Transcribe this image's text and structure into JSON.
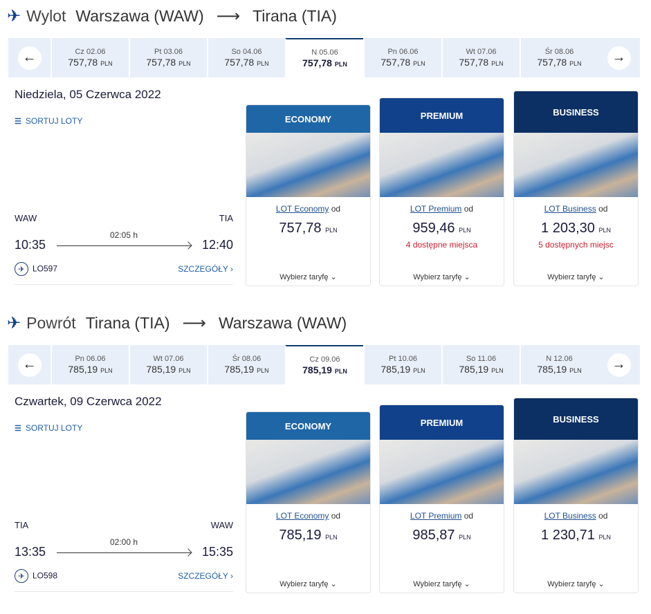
{
  "outbound": {
    "label": "Wylot",
    "from": "Warszawa (WAW)",
    "to": "Tirana (TIA)",
    "dates": [
      {
        "day": "Cz 02.06",
        "price": "757,78",
        "currency": "PLN"
      },
      {
        "day": "Pt 03.06",
        "price": "757,78",
        "currency": "PLN"
      },
      {
        "day": "So 04.06",
        "price": "757,78",
        "currency": "PLN"
      },
      {
        "day": "N 05.06",
        "price": "757,78",
        "currency": "PLN",
        "selected": true
      },
      {
        "day": "Pn 06.06",
        "price": "757,78",
        "currency": "PLN"
      },
      {
        "day": "Wt 07.06",
        "price": "757,78",
        "currency": "PLN"
      },
      {
        "day": "Śr 08.06",
        "price": "757,78",
        "currency": "PLN"
      }
    ],
    "date_heading": "Niedziela, 05 Czerwca 2022",
    "sort_label": "SORTUJ LOTY",
    "flight": {
      "origin": "WAW",
      "destination": "TIA",
      "depart": "10:35",
      "arrive": "12:40",
      "duration": "02:05 h",
      "number": "LO597",
      "details": "SZCZEGÓŁY ›"
    },
    "fares": [
      {
        "class": "ECONOMY",
        "link": "LOT Economy",
        "od": "od",
        "price": "757,78",
        "currency": "PLN",
        "seats": "",
        "choose": "Wybierz taryfę",
        "color": "#1f66a6"
      },
      {
        "class": "PREMIUM",
        "link": "LOT Premium",
        "od": "od",
        "price": "959,46",
        "currency": "PLN",
        "seats": "4 dostępne miejsca",
        "choose": "Wybierz taryfę",
        "color": "#11418a"
      },
      {
        "class": "BUSINESS",
        "link": "LOT Business",
        "od": "od",
        "price": "1 203,30",
        "currency": "PLN",
        "seats": "5 dostępnych miejsc",
        "choose": "Wybierz taryfę",
        "color": "#0d3064"
      }
    ]
  },
  "return": {
    "label": "Powrót",
    "from": "Tirana (TIA)",
    "to": "Warszawa (WAW)",
    "dates": [
      {
        "day": "Pn 06.06",
        "price": "785,19",
        "currency": "PLN"
      },
      {
        "day": "Wt 07.06",
        "price": "785,19",
        "currency": "PLN"
      },
      {
        "day": "Śr 08.06",
        "price": "785,19",
        "currency": "PLN"
      },
      {
        "day": "Cz 09.06",
        "price": "785,19",
        "currency": "PLN",
        "selected": true
      },
      {
        "day": "Pt 10.06",
        "price": "785,19",
        "currency": "PLN"
      },
      {
        "day": "So 11.06",
        "price": "785,19",
        "currency": "PLN"
      },
      {
        "day": "N 12.06",
        "price": "785,19",
        "currency": "PLN"
      }
    ],
    "date_heading": "Czwartek, 09 Czerwca 2022",
    "sort_label": "SORTUJ LOTY",
    "flight": {
      "origin": "TIA",
      "destination": "WAW",
      "depart": "13:35",
      "arrive": "15:35",
      "duration": "02:00 h",
      "number": "LO598",
      "details": "SZCZEGÓŁY ›"
    },
    "fares": [
      {
        "class": "ECONOMY",
        "link": "LOT Economy",
        "od": "od",
        "price": "785,19",
        "currency": "PLN",
        "seats": "",
        "choose": "Wybierz taryfę",
        "color": "#1f66a6"
      },
      {
        "class": "PREMIUM",
        "link": "LOT Premium",
        "od": "od",
        "price": "985,87",
        "currency": "PLN",
        "seats": "",
        "choose": "Wybierz taryfę",
        "color": "#11418a"
      },
      {
        "class": "BUSINESS",
        "link": "LOT Business",
        "od": "od",
        "price": "1 230,71",
        "currency": "PLN",
        "seats": "",
        "choose": "Wybierz taryfę",
        "color": "#0d3064"
      }
    ]
  }
}
